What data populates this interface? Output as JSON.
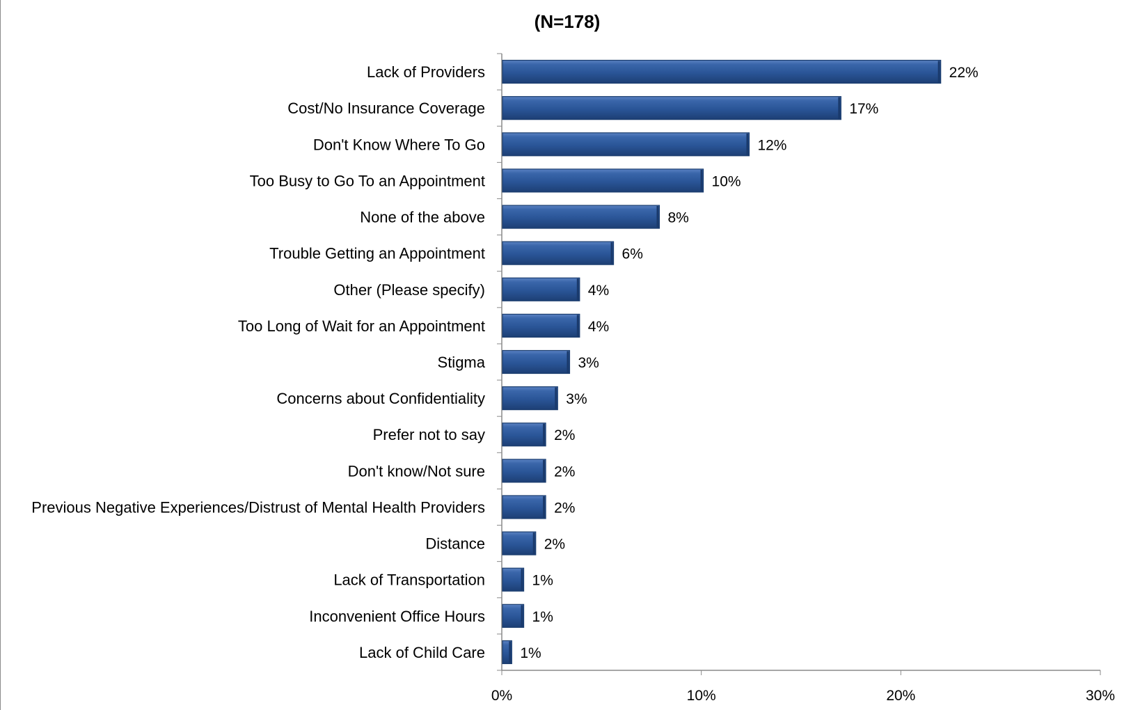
{
  "chart_data": {
    "type": "bar",
    "orientation": "horizontal",
    "title": "(N=178)",
    "xlabel": "",
    "ylabel": "",
    "categories": [
      "Lack of Providers",
      "Cost/No Insurance Coverage",
      "Don't Know Where To Go",
      "Too Busy to Go To an Appointment",
      "None of the above",
      "Trouble Getting an Appointment",
      "Other (Please specify)",
      "Too Long of Wait for an Appointment",
      "Stigma",
      "Concerns about Confidentiality",
      "Prefer not to say",
      "Don't know/Not sure",
      "Previous Negative Experiences/Distrust of Mental Health Providers",
      "Distance",
      "Lack of Transportation",
      "Inconvenient Office Hours",
      "Lack of Child Care"
    ],
    "values": [
      22,
      17,
      12.4,
      10.1,
      7.9,
      5.6,
      3.9,
      3.9,
      3.4,
      2.8,
      2.2,
      2.2,
      2.2,
      1.7,
      1.1,
      1.1,
      0.5
    ],
    "data_labels": [
      "22%",
      "17%",
      "12%",
      "10%",
      "8%",
      "6%",
      "4%",
      "4%",
      "3%",
      "3%",
      "2%",
      "2%",
      "2%",
      "2%",
      "1%",
      "1%",
      "1%"
    ],
    "xlim": [
      0,
      30
    ],
    "xticks": [
      0,
      10,
      20,
      30
    ],
    "xtick_labels": [
      "0%",
      "10%",
      "20%",
      "30%"
    ],
    "grid": false,
    "legend": "none",
    "bar_color": "#2a5597",
    "bar_edge_color": "#1b3d6e"
  }
}
